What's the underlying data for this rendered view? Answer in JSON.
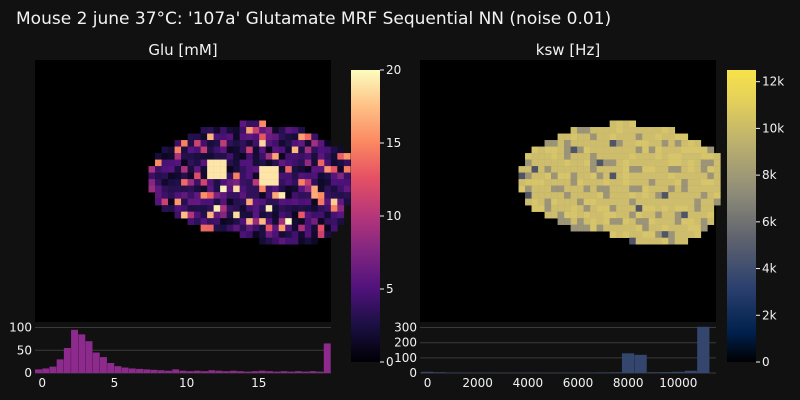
{
  "title": "Mouse 2 june 37°C: '107a' Glutamate MRF Sequential NN (noise 0.01)",
  "panels": [
    {
      "name": "glu",
      "subtitle": "Glu [mM]"
    },
    {
      "name": "ksw",
      "subtitle": "ksw [Hz]"
    }
  ],
  "chart_data": [
    {
      "type": "heatmap",
      "title": "Glu [mM]",
      "colorscale": "magma",
      "zlim": [
        0,
        20
      ],
      "colorbar_ticks": [
        "0",
        "5",
        "10",
        "15",
        "20"
      ],
      "colorbar_tick_values": [
        0,
        5,
        10,
        15,
        20
      ],
      "background": "black"
    },
    {
      "type": "bar",
      "title": "",
      "xlim": [
        -0.5,
        20
      ],
      "ylim": [
        0,
        110
      ],
      "x_ticks": [
        "0",
        "5",
        "10",
        "15"
      ],
      "x_tick_values": [
        0,
        5,
        10,
        15
      ],
      "y_ticks": [
        "0",
        "50",
        "100"
      ],
      "y_tick_values": [
        0,
        50,
        100
      ],
      "bar_color": "#8e2a8e",
      "x": [
        -0.25,
        0.25,
        0.75,
        1.25,
        1.75,
        2.25,
        2.75,
        3.25,
        3.75,
        4.25,
        4.75,
        5.25,
        5.75,
        6.25,
        6.75,
        7.25,
        7.75,
        8.25,
        8.75,
        9.25,
        9.75,
        10.25,
        10.75,
        11.25,
        11.75,
        12.25,
        12.75,
        13.25,
        13.75,
        14.25,
        14.75,
        15.25,
        15.75,
        16.25,
        16.75,
        17.25,
        17.75,
        18.25,
        18.75,
        19.25,
        19.75
      ],
      "values": [
        8,
        10,
        14,
        30,
        55,
        95,
        85,
        70,
        45,
        35,
        22,
        15,
        12,
        10,
        9,
        8,
        7,
        6,
        5,
        8,
        5,
        4,
        5,
        4,
        6,
        5,
        4,
        5,
        4,
        3,
        4,
        5,
        4,
        3,
        4,
        3,
        4,
        3,
        4,
        3,
        65
      ]
    },
    {
      "type": "heatmap",
      "title": "ksw [Hz]",
      "colorscale": "cividis",
      "zlim": [
        0,
        12500
      ],
      "colorbar_ticks": [
        "0",
        "2k",
        "4k",
        "6k",
        "8k",
        "10k",
        "12k"
      ],
      "colorbar_tick_values": [
        0,
        2000,
        4000,
        6000,
        8000,
        10000,
        12000
      ],
      "background": "black"
    },
    {
      "type": "bar",
      "title": "",
      "xlim": [
        -300,
        11500
      ],
      "ylim": [
        0,
        330
      ],
      "x_ticks": [
        "0",
        "2000",
        "4000",
        "6000",
        "8000",
        "10000"
      ],
      "x_tick_values": [
        0,
        2000,
        4000,
        6000,
        8000,
        10000
      ],
      "y_ticks": [
        "0",
        "100",
        "200",
        "300"
      ],
      "y_tick_values": [
        0,
        100,
        200,
        300
      ],
      "bar_color": "#34466e",
      "x": [
        0,
        500,
        1000,
        1500,
        2000,
        2500,
        3000,
        3500,
        4000,
        4500,
        5000,
        5500,
        6000,
        6500,
        7000,
        7500,
        8000,
        8500,
        9000,
        9500,
        10000,
        10500,
        11000
      ],
      "values": [
        8,
        5,
        3,
        3,
        2,
        3,
        2,
        2,
        3,
        2,
        2,
        3,
        2,
        3,
        4,
        5,
        130,
        120,
        5,
        6,
        8,
        15,
        305
      ]
    }
  ]
}
